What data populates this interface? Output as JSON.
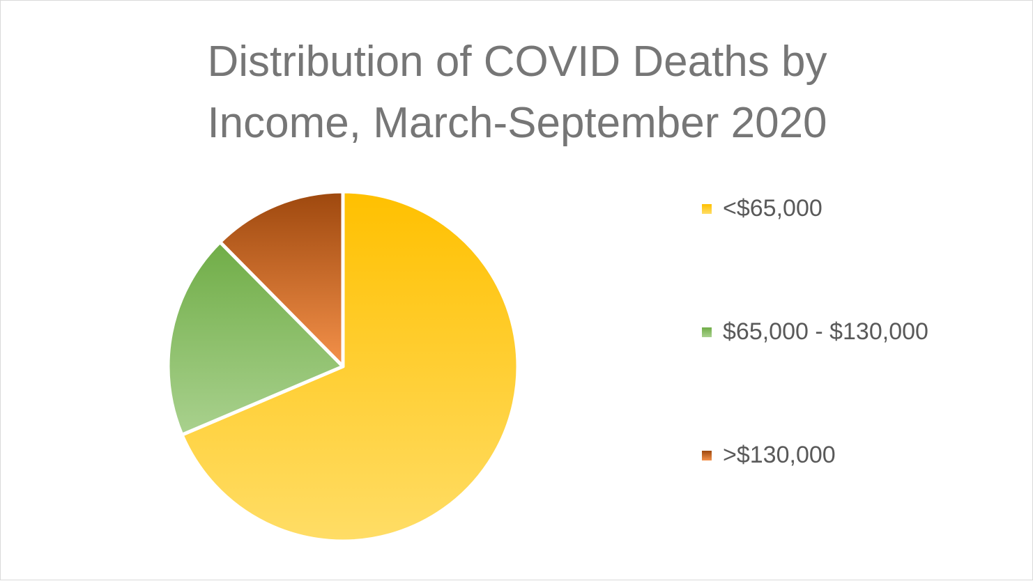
{
  "chart_data": {
    "type": "pie",
    "title": "Distribution of COVID Deaths by Income, March-September 2020",
    "title_lines": [
      "Distribution of COVID Deaths by",
      "Income, March-September 2020"
    ],
    "start_angle_deg": 0,
    "direction": "clockwise",
    "legend_position": "right",
    "categories": [
      "<$65,000",
      "$65,000 - $130,000",
      ">$130,000"
    ],
    "values": [
      68.6,
      19.0,
      12.4
    ],
    "colors": [
      {
        "top": "#ffc000",
        "bottom": "#ffdd66"
      },
      {
        "top": "#70ad47",
        "bottom": "#a9d18e"
      },
      {
        "top": "#9e480e",
        "bottom": "#f4914a"
      }
    ]
  }
}
